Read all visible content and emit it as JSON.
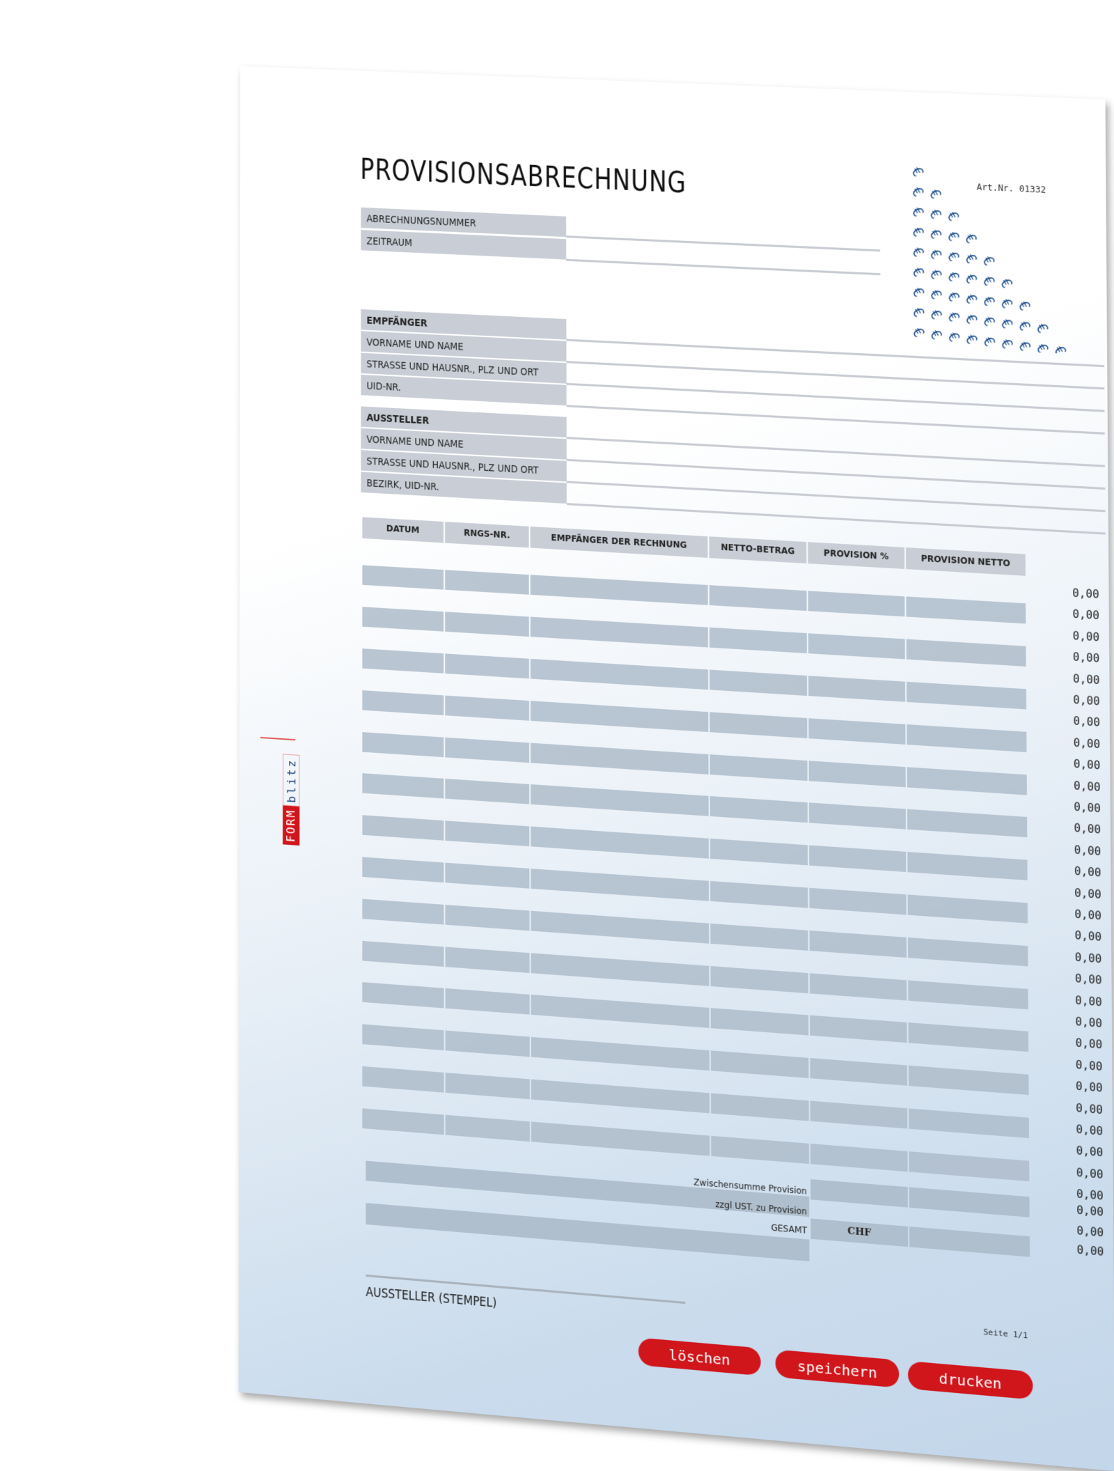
{
  "title": "PROVISIONSABRECHNUNG",
  "art_nr": "Art.Nr. 01332",
  "watermark_icon": "euro-pattern",
  "header_fields": [
    "ABRECHNUNGSNUMMER",
    "ZEITRAUM"
  ],
  "empfaenger": {
    "heading": "EMPFÄNGER",
    "fields": [
      "VORNAME UND NAME",
      "STRASSE UND HAUSNR., PLZ UND ORT",
      "UID-NR."
    ]
  },
  "aussteller": {
    "heading": "AUSSTELLER",
    "fields": [
      "VORNAME UND NAME",
      "STRASSE UND HAUSNR., PLZ UND ORT",
      "BEZIRK, UID-NR."
    ]
  },
  "table": {
    "columns": [
      "DATUM",
      "RNGS-NR.",
      "EMPFÄNGER DER RECHNUNG",
      "NETTO-BETRAG",
      "PROVISION %",
      "PROVISION NETTO"
    ],
    "rows": [
      "0,00",
      "0,00",
      "0,00",
      "0,00",
      "0,00",
      "0,00",
      "0,00",
      "0,00",
      "0,00",
      "0,00",
      "0,00",
      "0,00",
      "0,00",
      "0,00",
      "0,00",
      "0,00",
      "0,00",
      "0,00",
      "0,00",
      "0,00",
      "0,00",
      "0,00",
      "0,00",
      "0,00",
      "0,00",
      "0,00",
      "0,00",
      "0,00",
      "0,00"
    ]
  },
  "totals": {
    "subtotal_label": "Zwischensumme Provision",
    "subtotal": "0,00",
    "vat_label": "zzgl UST. zu Provision",
    "vat": "0,00",
    "total_label": "GESAMT",
    "currency": "CHF",
    "total": "0,00"
  },
  "signature_label": "AUSSTELLER (STEMPEL)",
  "page_label": "Seite 1/1",
  "buttons": {
    "delete": "löschen",
    "save": "speichern",
    "print": "drucken"
  },
  "logo": {
    "part1": "FORM",
    "part2": "blitz"
  },
  "colors": {
    "button": "#d0151b",
    "label_bg": "#c9ced6",
    "watermark": "#1d4e8f"
  }
}
